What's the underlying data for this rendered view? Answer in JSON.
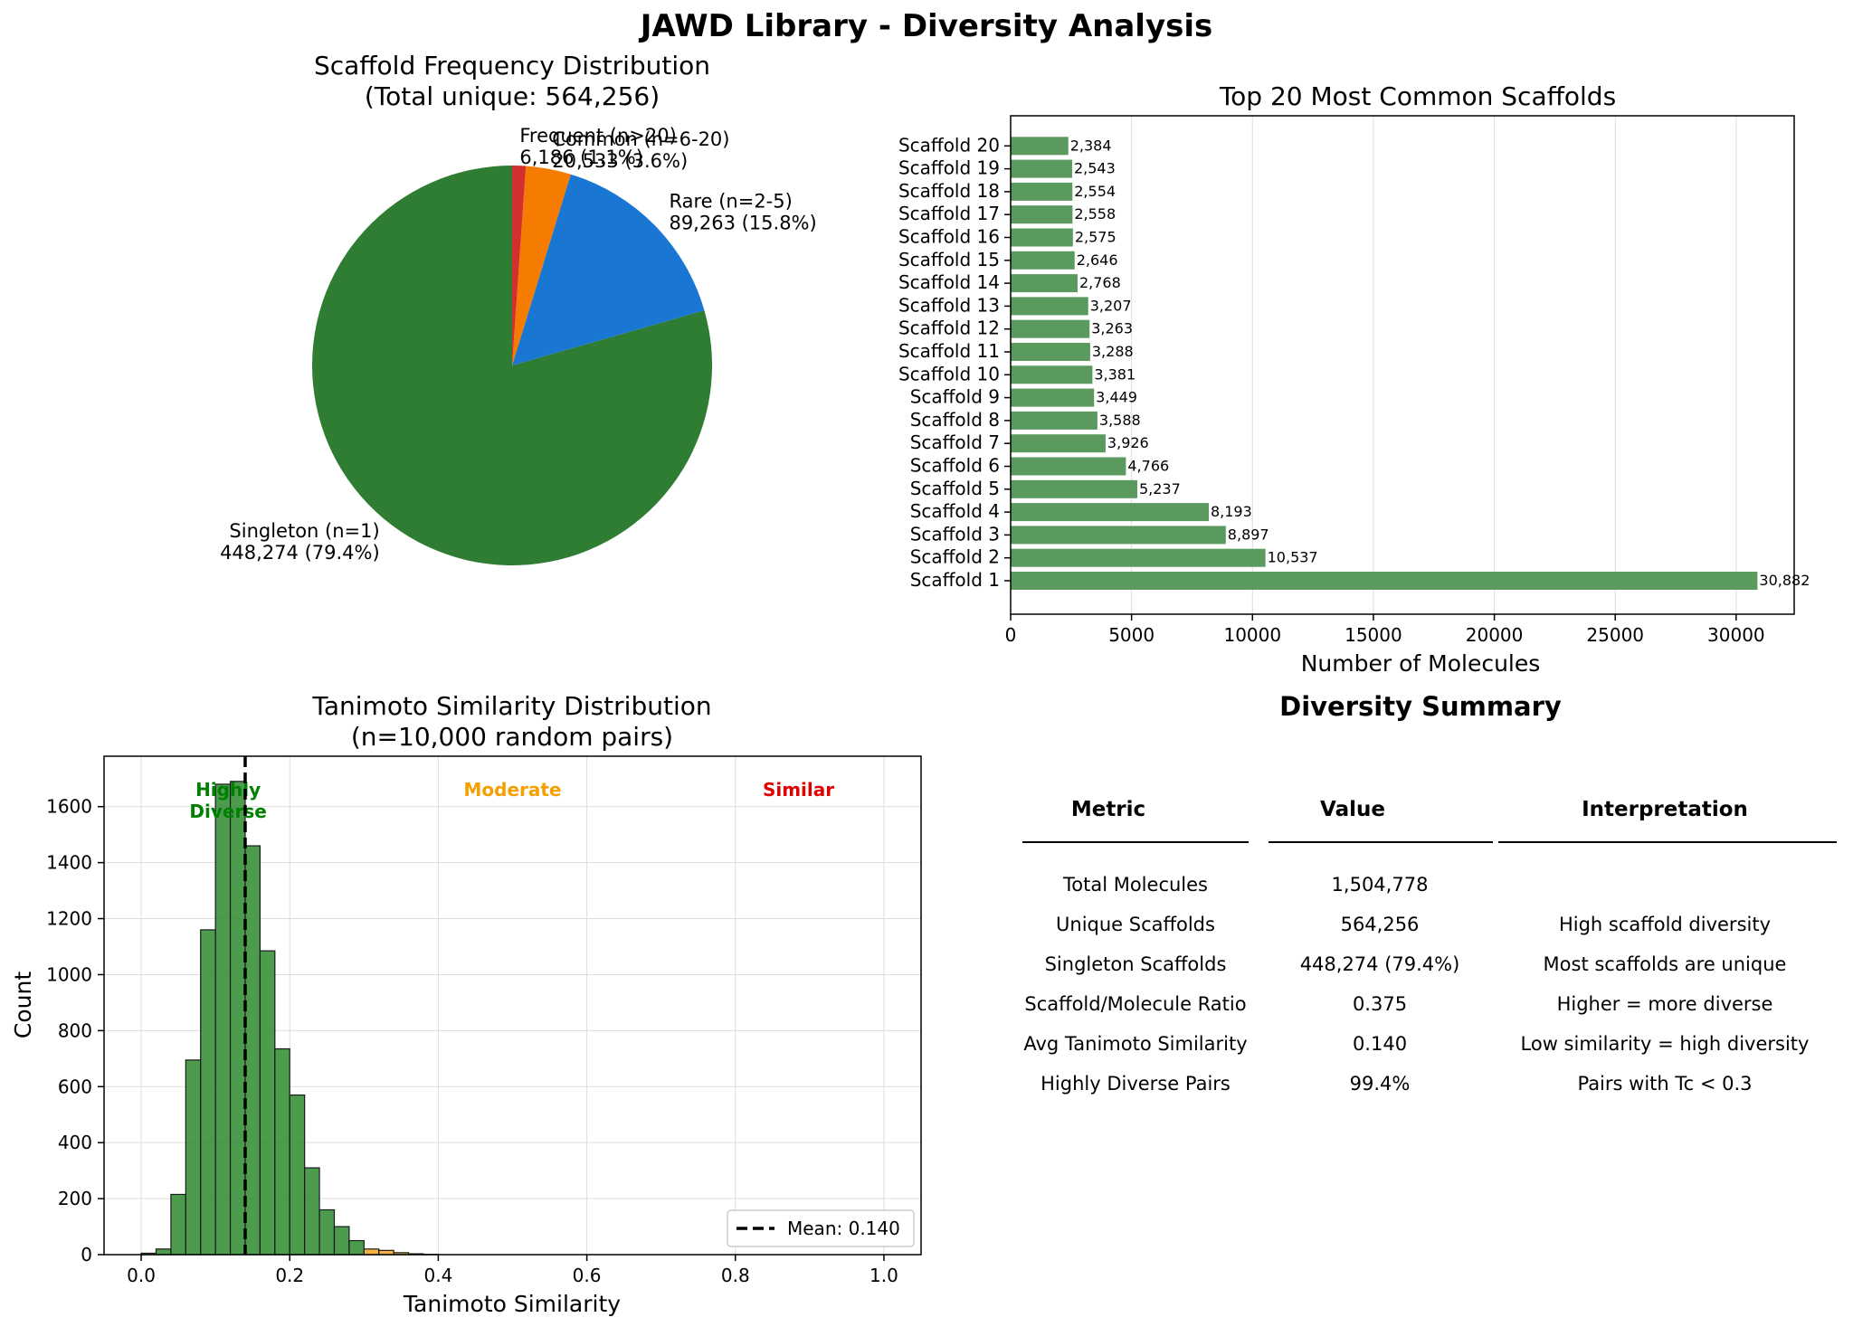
{
  "figure": {
    "title": "JAWD Library - Diversity Analysis"
  },
  "chart_data": [
    {
      "type": "pie",
      "title": "Scaffold Frequency Distribution",
      "subtitle": "(Total unique: 564,256)",
      "slices": [
        {
          "label": "Singleton (n=1)",
          "value": 448274,
          "display": "448,274 (79.4%)",
          "color": "#2e7d32"
        },
        {
          "label": "Rare (n=2-5)",
          "value": 89263,
          "display": "89,263 (15.8%)",
          "color": "#1976d2"
        },
        {
          "label": "Common (n=6-20)",
          "value": 20533,
          "display": "20,533 (3.6%)",
          "color": "#f57c00"
        },
        {
          "label": "Frequent (n>20)",
          "value": 6186,
          "display": "6,186 (1.1%)",
          "color": "#d32f2f"
        }
      ]
    },
    {
      "type": "bar",
      "orientation": "horizontal",
      "title": "Top 20 Most Common Scaffolds",
      "xlabel": "Number of Molecules",
      "xlim": [
        0,
        32400
      ],
      "xticks": [
        0,
        5000,
        10000,
        15000,
        20000,
        25000,
        30000
      ],
      "bar_color": "#5a9a5e",
      "categories": [
        "Scaffold 1",
        "Scaffold 2",
        "Scaffold 3",
        "Scaffold 4",
        "Scaffold 5",
        "Scaffold 6",
        "Scaffold 7",
        "Scaffold 8",
        "Scaffold 9",
        "Scaffold 10",
        "Scaffold 11",
        "Scaffold 12",
        "Scaffold 13",
        "Scaffold 14",
        "Scaffold 15",
        "Scaffold 16",
        "Scaffold 17",
        "Scaffold 18",
        "Scaffold 19",
        "Scaffold 20"
      ],
      "values": [
        30882,
        10537,
        8897,
        8193,
        5237,
        4766,
        3926,
        3588,
        3449,
        3381,
        3288,
        3263,
        3207,
        2768,
        2646,
        2575,
        2558,
        2554,
        2543,
        2384
      ],
      "value_labels": [
        "30,882",
        "10,537",
        "8,897",
        "8,193",
        "5,237",
        "4,766",
        "3,926",
        "3,588",
        "3,449",
        "3,381",
        "3,288",
        "3,263",
        "3,207",
        "2,768",
        "2,646",
        "2,575",
        "2,558",
        "2,554",
        "2,543",
        "2,384"
      ]
    },
    {
      "type": "histogram",
      "title": "Tanimoto Similarity Distribution",
      "subtitle": "(n=10,000 random pairs)",
      "xlabel": "Tanimoto Similarity",
      "ylabel": "Count",
      "xlim": [
        -0.05,
        1.05
      ],
      "ylim": [
        0,
        1780
      ],
      "xticks": [
        0.0,
        0.2,
        0.4,
        0.6,
        0.8,
        1.0
      ],
      "xtick_labels": [
        "0.0",
        "0.2",
        "0.4",
        "0.6",
        "0.8",
        "1.0"
      ],
      "yticks": [
        0,
        200,
        400,
        600,
        800,
        1000,
        1200,
        1400,
        1600
      ],
      "bin_start": 0.0,
      "bin_width": 0.02,
      "counts": [
        5,
        20,
        215,
        695,
        1160,
        1680,
        1690,
        1460,
        1085,
        735,
        570,
        310,
        160,
        100,
        50,
        20,
        15,
        7,
        3,
        1
      ],
      "moderate_threshold": 0.3,
      "colors": {
        "diverse": "#2e8b2e",
        "moderate": "#f5a623"
      },
      "mean": 0.14,
      "legend": "Mean: 0.140",
      "zones": [
        {
          "label": "Highly\nDiverse",
          "x": 0.117,
          "color": "#008000"
        },
        {
          "label": "Moderate",
          "x": 0.5,
          "color": "#f5a000"
        },
        {
          "label": "Similar",
          "x": 0.885,
          "color": "#e00000"
        }
      ]
    },
    {
      "type": "table",
      "title": "Diversity Summary",
      "columns": [
        "Metric",
        "Value",
        "Interpretation"
      ],
      "rows": [
        [
          "Total Molecules",
          "1,504,778",
          ""
        ],
        [
          "Unique Scaffolds",
          "564,256",
          "High scaffold diversity"
        ],
        [
          "Singleton Scaffolds",
          "448,274 (79.4%)",
          "Most scaffolds are unique"
        ],
        [
          "Scaffold/Molecule Ratio",
          "0.375",
          "Higher = more diverse"
        ],
        [
          "Avg Tanimoto Similarity",
          "0.140",
          "Low similarity = high diversity"
        ],
        [
          "Highly Diverse Pairs",
          "99.4%",
          "Pairs with Tc < 0.3"
        ]
      ]
    }
  ]
}
